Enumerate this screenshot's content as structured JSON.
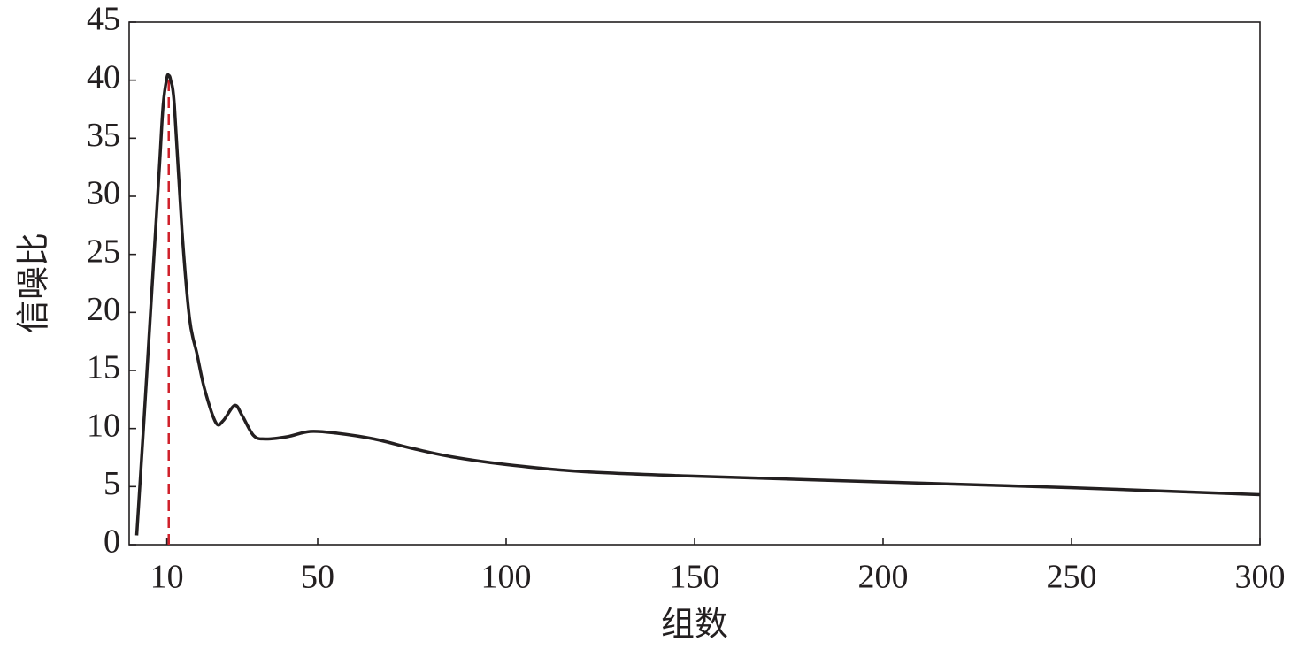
{
  "chart_data": {
    "type": "line",
    "x_label": "组数",
    "y_label": "信噪比",
    "x": [
      2,
      4,
      6,
      8,
      9,
      10,
      10.5,
      11,
      12,
      14,
      16,
      18,
      20,
      23,
      25,
      28,
      30,
      33,
      36,
      42,
      48,
      55,
      65,
      75,
      85,
      100,
      120,
      150,
      200,
      250,
      300
    ],
    "series": [
      {
        "color": "#231f20",
        "values": [
          0.8,
          11.1,
          21.8,
          32.4,
          37.8,
          40.2,
          40.4,
          40,
          37.8,
          27.1,
          19.5,
          16.4,
          13.4,
          10.5,
          10.7,
          12.0,
          11.1,
          9.4,
          9.1,
          9.3,
          9.75,
          9.6,
          9.1,
          8.3,
          7.6,
          6.9,
          6.3,
          5.9,
          5.4,
          4.9,
          4.3
        ]
      }
    ],
    "peak_x": 10.5,
    "peak_y": 40.4,
    "peak_color": "#d0202a",
    "xlim": [
      0,
      300
    ],
    "xticks": [
      10,
      50,
      100,
      150,
      200,
      250,
      300
    ],
    "ylim": [
      0,
      45
    ],
    "yticks": [
      0,
      5,
      10,
      15,
      20,
      25,
      30,
      35,
      40,
      45
    ]
  }
}
